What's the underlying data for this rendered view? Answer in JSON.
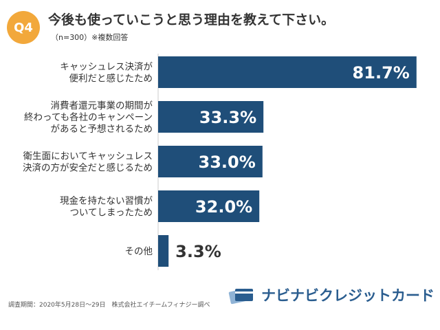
{
  "header": {
    "badge": "Q4",
    "title": "今後も使っていこうと思う理由を教えて下さい。",
    "subtitle": "（n=300）※複数回答"
  },
  "chart_data": {
    "type": "bar",
    "orientation": "horizontal",
    "categories": [
      [
        "キャッシュレス決済が",
        "便利だと感じたため"
      ],
      [
        "消費者還元事業の期間が",
        "終わっても各社のキャンペーン",
        "があると予想されるため"
      ],
      [
        "衛生面においてキャッシュレス",
        "決済の方が安全だと感じるため"
      ],
      [
        "現金を持たない習慣が",
        "ついてしまったため"
      ],
      [
        "その他"
      ]
    ],
    "values": [
      81.7,
      33.3,
      33.0,
      32.0,
      3.3
    ],
    "value_labels": [
      "81.7%",
      "33.3%",
      "33.0%",
      "32.0%",
      "3.3%"
    ],
    "xlim": [
      0,
      100
    ],
    "bar_color": "#1f4e79",
    "grid": false,
    "legend": "none"
  },
  "footer": {
    "note": "調査期間：2020年5月28日〜29日　株式会社エイチームフィナジー調べ",
    "logo_text": "ナビナビクレジットカード"
  },
  "colors": {
    "badge": "#f2a83b",
    "bar": "#1f4e79",
    "logo": "#2a5d8f"
  }
}
